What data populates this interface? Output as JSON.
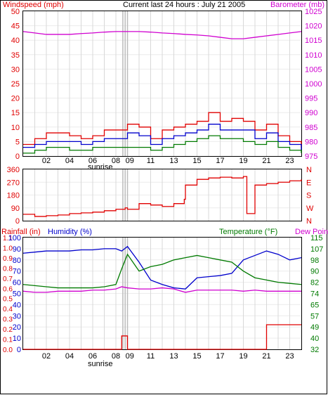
{
  "header": {
    "title": "Current last 24 hours : July 21 2005",
    "left_label": "Windspeed (mph)",
    "right_label": "Barometer (mb)"
  },
  "colors": {
    "red": "#e00000",
    "blue": "#0000cc",
    "green": "#007a00",
    "magenta": "#d000d0",
    "grid": "#d8d8d8",
    "frame": "#000000"
  },
  "chart_data": [
    {
      "id": "wind",
      "type": "line",
      "xlabel": "",
      "ylabel": "Windspeed (mph)",
      "x_ticks": [
        "02",
        "04",
        "06",
        "08",
        "09",
        "11",
        "13",
        "15",
        "17",
        "19",
        "21",
        "23"
      ],
      "marker_labels": [
        "sunrise"
      ],
      "ylim": [
        0,
        50
      ],
      "y_ticks": [
        0,
        5,
        10,
        15,
        20,
        25,
        30,
        35,
        40,
        45,
        50
      ],
      "y2_label": "Barometer (mb)",
      "y2lim": [
        975,
        1025
      ],
      "y2_ticks": [
        975,
        980,
        985,
        990,
        995,
        1000,
        1005,
        1010,
        1015,
        1020,
        1025
      ],
      "hours": [
        0,
        1,
        2,
        3,
        4,
        5,
        6,
        7,
        8,
        9,
        10,
        11,
        12,
        13,
        14,
        15,
        16,
        17,
        18,
        19,
        20,
        21,
        22,
        23,
        24
      ],
      "series": [
        {
          "color_key": "red",
          "values": [
            4,
            6,
            8,
            8,
            7,
            6,
            7,
            9,
            9,
            11,
            10,
            6,
            9,
            10,
            11,
            12,
            15,
            12,
            13,
            12,
            9,
            11,
            7,
            5,
            3
          ]
        },
        {
          "color_key": "blue",
          "values": [
            3,
            4,
            5,
            5,
            5,
            4,
            5,
            6,
            6,
            8,
            7,
            4,
            6,
            7,
            8,
            9,
            11,
            9,
            9,
            9,
            6,
            8,
            5,
            4,
            2
          ]
        },
        {
          "color_key": "green",
          "values": [
            1,
            2,
            3,
            3,
            2,
            2,
            3,
            3,
            3,
            3,
            3,
            2,
            3,
            4,
            5,
            6,
            7,
            6,
            6,
            5,
            4,
            5,
            3,
            2,
            1
          ]
        },
        {
          "axis": "y2",
          "color_key": "magenta",
          "values": [
            1018,
            1017.5,
            1017,
            1017,
            1017,
            1017.3,
            1017.5,
            1017.8,
            1018,
            1018,
            1018,
            1017.8,
            1017.5,
            1017.3,
            1017,
            1016.8,
            1016.5,
            1016,
            1015.5,
            1015.5,
            1016,
            1016.5,
            1017,
            1017.5,
            1018
          ]
        }
      ]
    },
    {
      "id": "winddir",
      "type": "line",
      "xlabel": "",
      "ylabel": "",
      "ylim": [
        0,
        360
      ],
      "y_ticks": [
        0,
        90,
        180,
        270,
        360
      ],
      "y2_ticks": [
        "N",
        "W",
        "S",
        "E",
        "N"
      ],
      "hours": [
        0,
        1,
        2,
        3,
        4,
        5,
        6,
        7,
        8,
        8.8,
        9,
        10,
        11,
        12,
        13,
        13.9,
        14,
        15,
        16,
        17,
        18,
        19,
        19.3,
        20,
        21,
        22,
        23,
        24
      ],
      "series": [
        {
          "color_key": "red",
          "values": [
            45,
            30,
            35,
            40,
            50,
            55,
            60,
            70,
            80,
            90,
            80,
            120,
            110,
            100,
            120,
            150,
            250,
            290,
            300,
            305,
            300,
            310,
            50,
            250,
            260,
            270,
            280,
            290
          ]
        }
      ]
    },
    {
      "id": "hum",
      "type": "line",
      "xlabel": "",
      "left_labels": [
        "Rainfall (in)",
        "Humidity (%)"
      ],
      "right_labels": [
        "Temperature (°F)",
        "Dew Point"
      ],
      "x_ticks": [
        "02",
        "04",
        "06",
        "08",
        "09",
        "11",
        "13",
        "15",
        "17",
        "19",
        "21",
        "23"
      ],
      "marker_labels": [
        "sunrise"
      ],
      "ylim": [
        0,
        100
      ],
      "y_ticks": [
        0,
        10,
        20,
        30,
        40,
        50,
        60,
        70,
        80,
        90,
        100
      ],
      "rain_ticks": [
        "0.0",
        "0.1",
        "0.2",
        "0.3",
        "0.4",
        "0.5",
        "0.6",
        "0.7",
        "0.8",
        "0.9",
        "1.0",
        "1.1"
      ],
      "temp_ticks": [
        32,
        40,
        49,
        57,
        65,
        74,
        82,
        90,
        98,
        107,
        115
      ],
      "hours": [
        0,
        1,
        2,
        3,
        4,
        5,
        6,
        7,
        8,
        8.5,
        9,
        10,
        11,
        12,
        13,
        14,
        15,
        16,
        17,
        18,
        19,
        20,
        21,
        22,
        23,
        24
      ],
      "series": [
        {
          "color_key": "blue",
          "values": [
            86,
            87,
            88,
            88,
            88,
            89,
            89,
            90,
            90,
            88,
            92,
            78,
            62,
            58,
            55,
            54,
            64,
            65,
            66,
            68,
            80,
            84,
            88,
            85,
            80,
            82
          ]
        },
        {
          "color_key": "green",
          "values": [
            58,
            57,
            56,
            55,
            55,
            55,
            55,
            56,
            58,
            72,
            85,
            70,
            74,
            76,
            80,
            82,
            84,
            82,
            80,
            78,
            70,
            64,
            62,
            60,
            59,
            58
          ]
        },
        {
          "color_key": "magenta",
          "values": [
            52,
            51,
            51,
            52,
            52,
            52,
            53,
            53,
            54,
            56,
            55,
            54,
            54,
            55,
            54,
            51,
            53,
            53,
            53,
            53,
            52,
            53,
            52,
            52,
            52,
            52
          ]
        },
        {
          "color_key": "red",
          "values": [
            0,
            0,
            0,
            0,
            0,
            0,
            0,
            0,
            0,
            12,
            0,
            0,
            0,
            0,
            0,
            0,
            0,
            0,
            0,
            0,
            0,
            0,
            22,
            22,
            22,
            22
          ]
        }
      ]
    }
  ]
}
